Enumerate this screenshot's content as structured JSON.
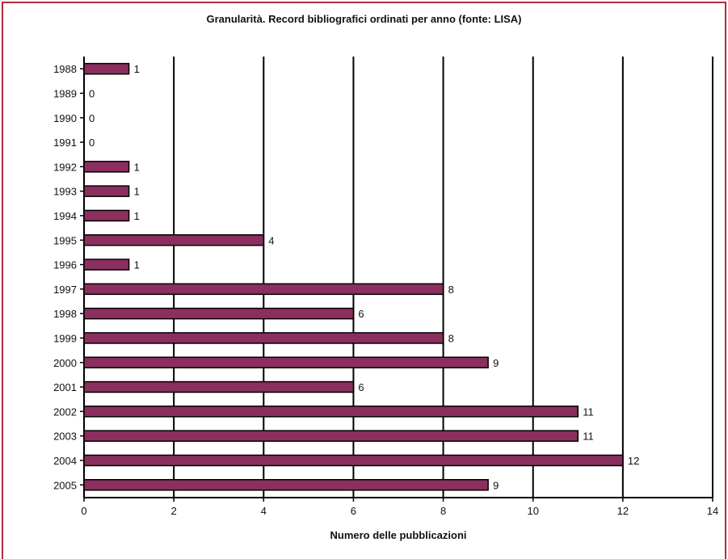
{
  "chart_data": {
    "type": "bar",
    "orientation": "horizontal",
    "title": "Granularità. Record bibliografici ordinati per anno (fonte: LISA)",
    "xlabel": "Numero delle pubblicazioni",
    "ylabel": "",
    "categories": [
      "1988",
      "1989",
      "1990",
      "1991",
      "1992",
      "1993",
      "1994",
      "1995",
      "1996",
      "1997",
      "1998",
      "1999",
      "2000",
      "2001",
      "2002",
      "2003",
      "2004",
      "2005"
    ],
    "values": [
      1,
      0,
      0,
      0,
      1,
      1,
      1,
      4,
      1,
      8,
      6,
      8,
      9,
      6,
      11,
      11,
      12,
      9
    ],
    "xlim": [
      0,
      14
    ],
    "xticks": [
      "0",
      "2",
      "4",
      "6",
      "8",
      "10",
      "12",
      "14"
    ],
    "grid": true,
    "data_labels": true,
    "bar_color": "#8b2f5e",
    "frame_color": "#b0303a"
  }
}
